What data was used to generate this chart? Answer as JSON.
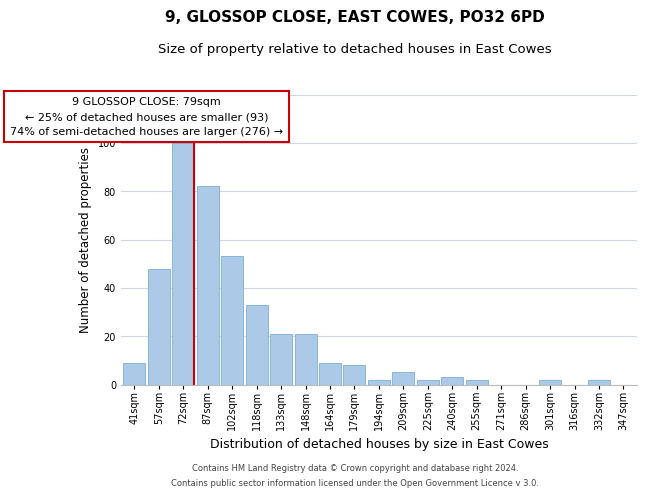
{
  "title": "9, GLOSSOP CLOSE, EAST COWES, PO32 6PD",
  "subtitle": "Size of property relative to detached houses in East Cowes",
  "xlabel": "Distribution of detached houses by size in East Cowes",
  "ylabel": "Number of detached properties",
  "footer_line1": "Contains HM Land Registry data © Crown copyright and database right 2024.",
  "footer_line2": "Contains public sector information licensed under the Open Government Licence v 3.0.",
  "bar_labels": [
    "41sqm",
    "57sqm",
    "72sqm",
    "87sqm",
    "102sqm",
    "118sqm",
    "133sqm",
    "148sqm",
    "164sqm",
    "179sqm",
    "194sqm",
    "209sqm",
    "225sqm",
    "240sqm",
    "255sqm",
    "271sqm",
    "286sqm",
    "301sqm",
    "316sqm",
    "332sqm",
    "347sqm"
  ],
  "bar_values": [
    9,
    48,
    100,
    82,
    53,
    33,
    21,
    21,
    9,
    8,
    2,
    5,
    2,
    3,
    2,
    0,
    0,
    2,
    0,
    2,
    0
  ],
  "bar_color": "#adc9e8",
  "bar_edge_color": "#7aafd4",
  "red_line_index": 2,
  "red_line_color": "#cc0000",
  "annotation_text": "9 GLOSSOP CLOSE: 79sqm\n← 25% of detached houses are smaller (93)\n74% of semi-detached houses are larger (276) →",
  "annotation_box_facecolor": "#ffffff",
  "annotation_box_edgecolor": "#cc0000",
  "ylim": [
    0,
    120
  ],
  "yticks": [
    0,
    20,
    40,
    60,
    80,
    100,
    120
  ],
  "background_color": "#ffffff",
  "grid_color": "#d0d8e8",
  "title_fontsize": 11,
  "subtitle_fontsize": 9.5,
  "ylabel_fontsize": 8.5,
  "xlabel_fontsize": 9,
  "tick_fontsize": 7,
  "annot_fontsize": 8,
  "footer_fontsize": 6
}
